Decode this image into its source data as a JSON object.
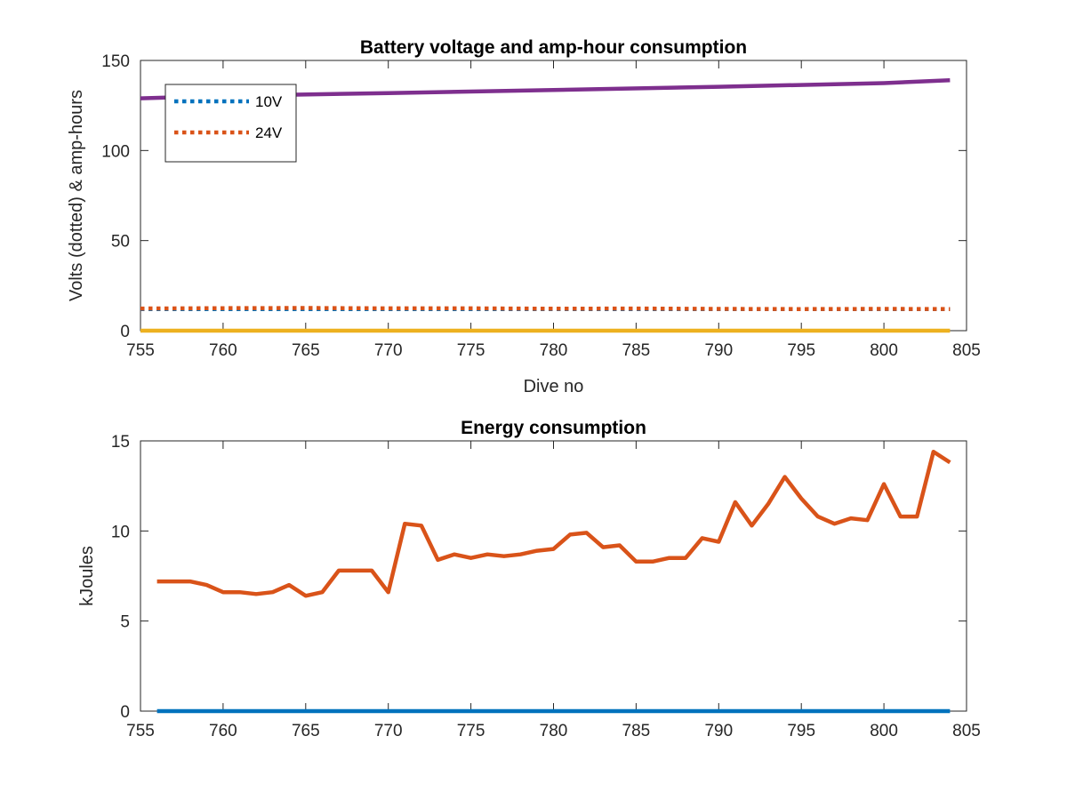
{
  "chart_data": [
    {
      "type": "line",
      "title": "Battery voltage and amp-hour consumption",
      "xlabel": "Dive no",
      "ylabel": "Volts (dotted) & amp-hours",
      "xlim": [
        755,
        805
      ],
      "ylim": [
        0,
        150
      ],
      "xticks": [
        755,
        760,
        765,
        770,
        775,
        780,
        785,
        790,
        795,
        800,
        805
      ],
      "yticks": [
        0,
        50,
        100,
        150
      ],
      "grid": false,
      "legend": {
        "placement": "top-left",
        "entries": [
          "10V",
          "24V"
        ]
      },
      "series": [
        {
          "name": "10V",
          "style": "dotted",
          "color": "#0072BD",
          "x": [
            755,
            804
          ],
          "y": [
            12,
            12
          ]
        },
        {
          "name": "24V",
          "style": "dotted",
          "color": "#D95319",
          "x": [
            755,
            760,
            765,
            770,
            775,
            780,
            785,
            790,
            795,
            800,
            804
          ],
          "y": [
            12.3,
            12.5,
            12.6,
            12.4,
            12.4,
            12.2,
            12.3,
            12.1,
            12.0,
            12.1,
            12.0
          ]
        },
        {
          "style": "solid",
          "color": "#EDB120",
          "x": [
            755,
            804
          ],
          "y": [
            0,
            0
          ]
        },
        {
          "style": "solid",
          "color": "#7E2F8E",
          "x": [
            755,
            760,
            770,
            780,
            790,
            800,
            804
          ],
          "y": [
            129,
            130.3,
            131.9,
            133.6,
            135.4,
            137.4,
            139
          ]
        }
      ]
    },
    {
      "type": "line",
      "title": "Energy consumption",
      "xlabel": "",
      "ylabel": "kJoules",
      "xlim": [
        755,
        805
      ],
      "ylim": [
        0,
        15
      ],
      "xticks": [
        755,
        760,
        765,
        770,
        775,
        780,
        785,
        790,
        795,
        800,
        805
      ],
      "yticks": [
        0,
        5,
        10,
        15
      ],
      "grid": false,
      "series": [
        {
          "style": "solid",
          "color": "#0072BD",
          "x": [
            756,
            804
          ],
          "y": [
            0,
            0
          ]
        },
        {
          "style": "solid",
          "color": "#D95319",
          "x": [
            756,
            757,
            758,
            759,
            760,
            761,
            762,
            763,
            764,
            765,
            766,
            767,
            768,
            769,
            770,
            771,
            772,
            773,
            774,
            775,
            776,
            777,
            778,
            779,
            780,
            781,
            782,
            783,
            784,
            785,
            786,
            787,
            788,
            789,
            790,
            791,
            792,
            793,
            794,
            795,
            796,
            797,
            798,
            799,
            800,
            801,
            802,
            803,
            804
          ],
          "y": [
            7.2,
            7.2,
            7.2,
            7.0,
            6.6,
            6.6,
            6.5,
            6.6,
            7.0,
            6.4,
            6.6,
            7.8,
            7.8,
            7.8,
            6.6,
            10.4,
            10.3,
            8.4,
            8.7,
            8.5,
            8.7,
            8.6,
            8.7,
            8.9,
            9.0,
            9.8,
            9.9,
            9.1,
            9.2,
            8.3,
            8.3,
            8.5,
            8.5,
            9.6,
            9.4,
            11.6,
            10.3,
            11.5,
            13.0,
            11.8,
            10.8,
            10.4,
            10.7,
            10.6,
            12.6,
            10.8,
            10.8,
            14.4,
            13.8
          ]
        }
      ]
    }
  ]
}
